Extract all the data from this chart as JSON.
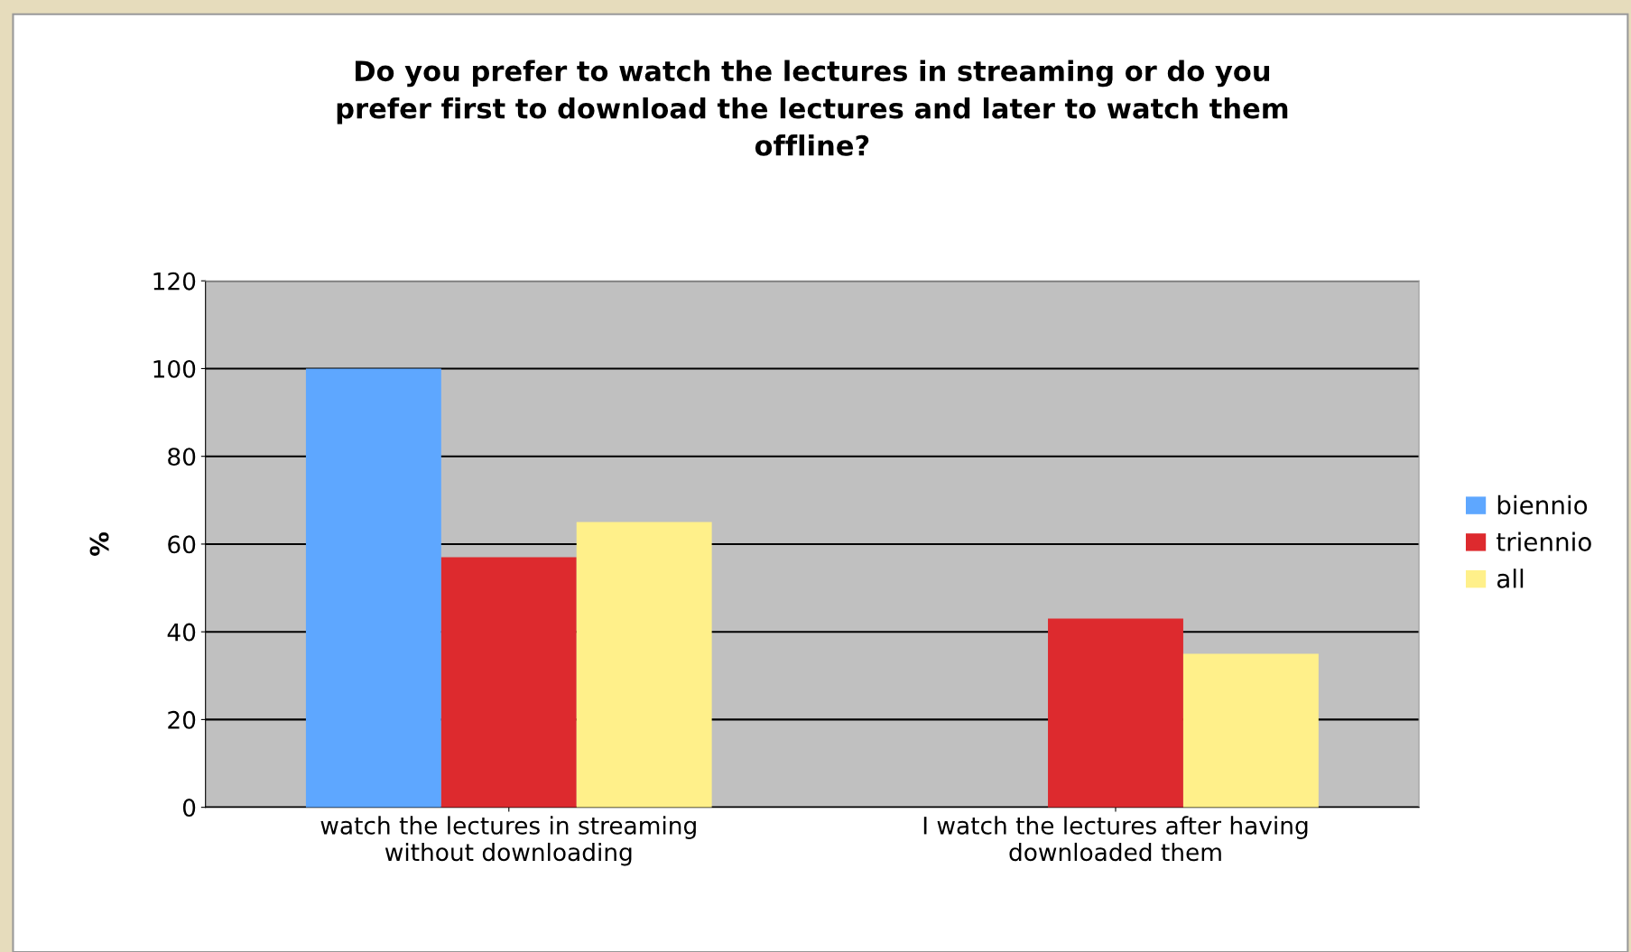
{
  "chart_data": {
    "type": "bar",
    "title": "Do you prefer to watch the lectures in streaming or do you\nprefer first to download the lectures and later to watch them\noffline?",
    "ylabel": "%",
    "categories": [
      "watch the lectures in streaming\nwithout downloading",
      "I watch the lectures after having\ndownloaded them"
    ],
    "series": [
      {
        "name": "biennio",
        "color": "#5ea7ff",
        "values": [
          100,
          0
        ]
      },
      {
        "name": "triennio",
        "color": "#dd2a2e",
        "values": [
          57,
          43
        ]
      },
      {
        "name": "all",
        "color": "#fff08a",
        "values": [
          65,
          35
        ]
      }
    ],
    "ylim": [
      0,
      120
    ],
    "yticks": [
      0,
      20,
      40,
      60,
      80,
      100,
      120
    ],
    "grid": "y",
    "legend": "right"
  }
}
